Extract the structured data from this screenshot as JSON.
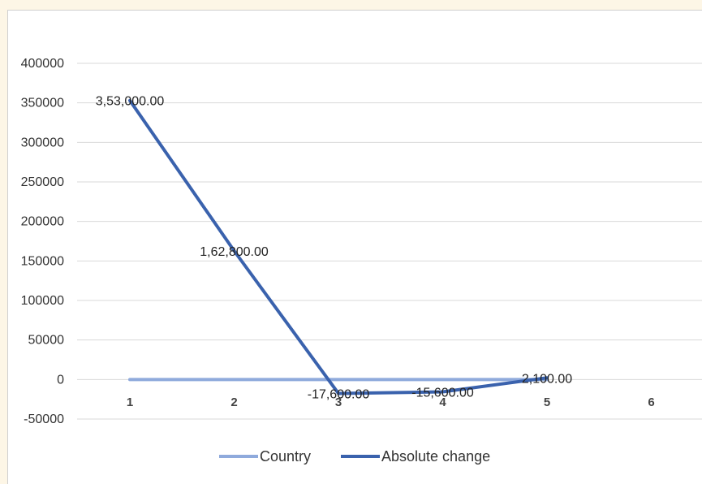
{
  "chart_data": {
    "type": "line",
    "title": "",
    "xlabel": "",
    "ylabel": "",
    "x": [
      "1",
      "2",
      "3",
      "4",
      "5",
      "6"
    ],
    "ylim": [
      -50000,
      400000
    ],
    "yticks": [
      -50000,
      0,
      50000,
      100000,
      150000,
      200000,
      250000,
      300000,
      350000,
      400000
    ],
    "grid": true,
    "legend_position": "bottom",
    "series": [
      {
        "name": "Country",
        "color": "#8faadc",
        "values": [
          0,
          0,
          0,
          0,
          0,
          null
        ]
      },
      {
        "name": "Absolute change",
        "color": "#3a62ad",
        "values": [
          353000,
          162800,
          -17600,
          -15600,
          2100,
          null
        ],
        "data_labels": [
          "3,53,000.00",
          "1,62,800.00",
          "-17,600.00",
          "-15,600.00",
          "2,100.00",
          null
        ]
      }
    ]
  }
}
